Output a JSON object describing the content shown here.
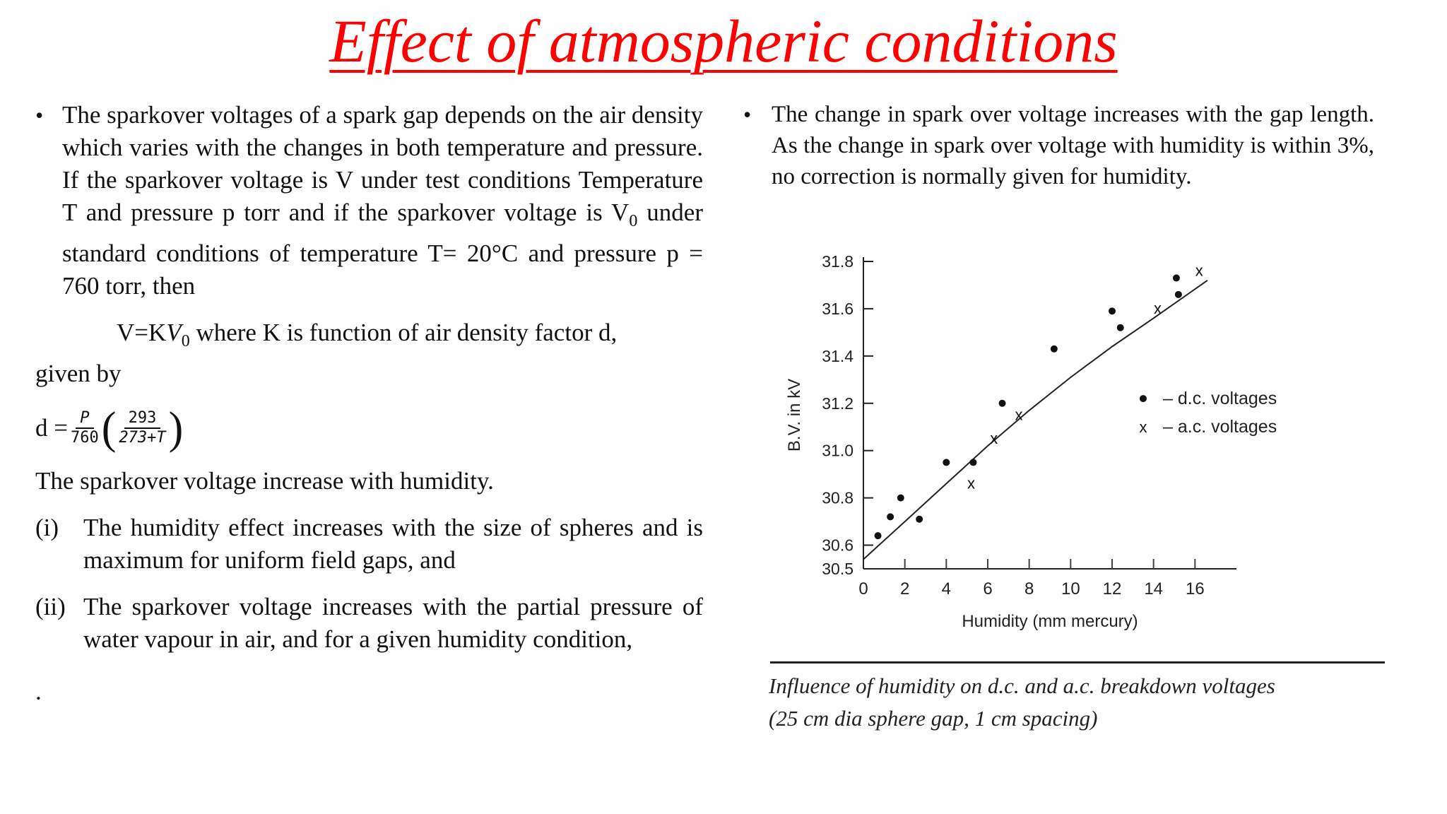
{
  "title": "Effect of atmospheric conditions",
  "left": {
    "para1": "The sparkover voltages of a spark gap depends on the air density which varies with the changes in both temperature and pressure. If the sparkover voltage is V under test conditions Temperature T and pressure p torr and if the sparkover voltage is V",
    "para1_sub": "0",
    "para1_tail": " under standard conditions of temperature T= 20°C and pressure p = 760 torr, then",
    "eq_lhs": "V=K",
    "eq_var": "V",
    "eq_sub": "0",
    "eq_text": "  where K is function of air density factor d,",
    "eq_cont": "given by",
    "formula": {
      "lhs": "d =",
      "f1_num": "P",
      "f1_den": "760",
      "f2_num": "293",
      "f2_den": "273+T",
      "open": "(",
      "close": ")"
    },
    "humidity_line": "The sparkover voltage increase with humidity.",
    "items": [
      {
        "mark": "(i)",
        "text": "The humidity effect increases with the size of spheres and is maximum for uniform field gaps, and"
      },
      {
        "mark": "(ii)",
        "text": "The sparkover voltage increases with the partial pressure of water vapour in air, and for a given humidity condition,"
      }
    ],
    "tail": "."
  },
  "right": {
    "para": "The change in spark over voltage increases with the gap length. As the change in spark over voltage with humidity is within 3%, no correction is normally given for humidity."
  },
  "bullet_glyph": "•",
  "caption": {
    "line1": "Influence of humidity on d.c. and a.c. breakdown voltages",
    "line2": "(25 cm dia sphere gap, 1 cm spacing)"
  },
  "chart_data": {
    "type": "scatter",
    "xlabel": "Humidity (mm mercury)",
    "ylabel": "B.V. in kV",
    "xlim": [
      0,
      18
    ],
    "ylim": [
      30.5,
      31.8
    ],
    "x_ticks": [
      0,
      2,
      4,
      6,
      8,
      10,
      12,
      14,
      16
    ],
    "y_ticks": [
      30.5,
      30.6,
      30.8,
      31.0,
      31.2,
      31.4,
      31.6,
      31.8
    ],
    "y_tick_labels": [
      "30.5",
      "30.6",
      "30.8",
      "31.0",
      "31.2",
      "31.4",
      "31.6",
      "31.8"
    ],
    "legend_position": "right",
    "series": [
      {
        "name": "– d.c. voltages",
        "marker": "dot",
        "points": [
          [
            0.7,
            30.64
          ],
          [
            1.3,
            30.72
          ],
          [
            1.8,
            30.8
          ],
          [
            2.7,
            30.71
          ],
          [
            4.0,
            30.95
          ],
          [
            5.3,
            30.95
          ],
          [
            6.7,
            31.2
          ],
          [
            9.2,
            31.43
          ],
          [
            12.0,
            31.59
          ],
          [
            12.4,
            31.52
          ],
          [
            15.1,
            31.73
          ],
          [
            15.2,
            31.66
          ]
        ]
      },
      {
        "name": "– a.c. voltages",
        "marker": "x",
        "points": [
          [
            5.2,
            30.86
          ],
          [
            6.3,
            31.05
          ],
          [
            7.5,
            31.15
          ],
          [
            14.2,
            31.6
          ],
          [
            16.2,
            31.76
          ]
        ]
      },
      {
        "name": "trend",
        "marker": "none",
        "points": [
          [
            0,
            30.54
          ],
          [
            2,
            30.7
          ],
          [
            4,
            30.86
          ],
          [
            6,
            31.02
          ],
          [
            8,
            31.17
          ],
          [
            10,
            31.31
          ],
          [
            12,
            31.44
          ],
          [
            14,
            31.56
          ],
          [
            16.6,
            31.72
          ]
        ]
      }
    ]
  }
}
